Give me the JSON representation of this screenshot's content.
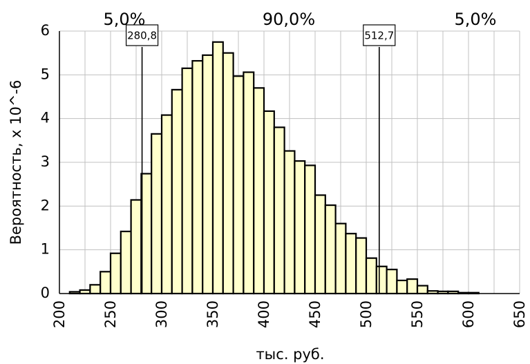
{
  "chart_data": {
    "type": "bar",
    "title": "",
    "xlabel": "тыс. руб.",
    "ylabel": "Вероятность, x 10^-6",
    "xlim": [
      200,
      650
    ],
    "ylim": [
      0,
      6
    ],
    "x_ticks": [
      "200",
      "250",
      "300",
      "350",
      "400",
      "450",
      "500",
      "550",
      "600",
      "650"
    ],
    "y_ticks": [
      "0",
      "1",
      "2",
      "3",
      "4",
      "5",
      "6"
    ],
    "grid": true,
    "bin_width": 10,
    "bin_starts": [
      200,
      210,
      220,
      230,
      240,
      250,
      260,
      270,
      280,
      290,
      300,
      310,
      320,
      330,
      340,
      350,
      360,
      370,
      380,
      390,
      400,
      410,
      420,
      430,
      440,
      450,
      460,
      470,
      480,
      490,
      500,
      510,
      520,
      530,
      540,
      550,
      560,
      570,
      580,
      590,
      600,
      610,
      620,
      630,
      640
    ],
    "values": [
      0.0,
      0.04,
      0.08,
      0.2,
      0.5,
      0.92,
      1.42,
      2.14,
      2.74,
      3.65,
      4.08,
      4.66,
      5.15,
      5.32,
      5.45,
      5.75,
      5.5,
      4.97,
      5.06,
      4.7,
      4.17,
      3.8,
      3.26,
      3.03,
      2.93,
      2.25,
      2.02,
      1.6,
      1.37,
      1.27,
      0.81,
      0.62,
      0.55,
      0.3,
      0.33,
      0.18,
      0.06,
      0.05,
      0.05,
      0.02,
      0.02,
      0.0,
      0.0,
      0.0,
      0.0
    ],
    "percentiles": [
      {
        "value": 280.8,
        "label": "280,8"
      },
      {
        "value": 512.7,
        "label": "512,7"
      }
    ],
    "region_labels": [
      "5,0%",
      "90,0%",
      "5,0%"
    ]
  }
}
